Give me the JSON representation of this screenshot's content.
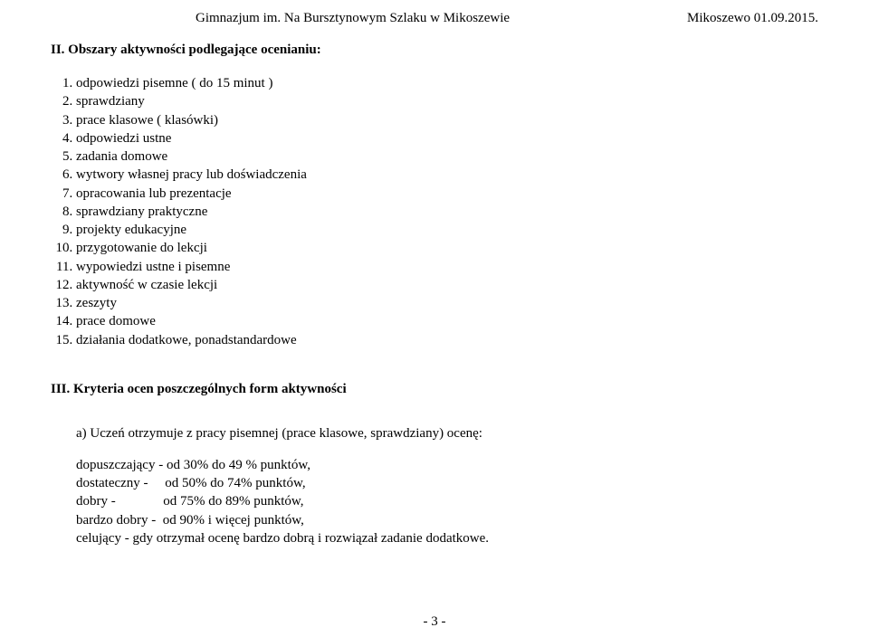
{
  "header": {
    "center": "Gimnazjum im. Na Bursztynowym Szlaku w Mikoszewie",
    "right": "Mikoszewo 01.09.2015."
  },
  "section2": {
    "heading": "II. Obszary aktywności podlegające ocenianiu:",
    "items": [
      "odpowiedzi pisemne ( do 15 minut )",
      "sprawdziany",
      "prace klasowe ( klasówki)",
      "odpowiedzi ustne",
      "zadania domowe",
      "wytwory własnej pracy lub doświadczenia",
      "opracowania lub prezentacje",
      "sprawdziany praktyczne",
      "projekty edukacyjne",
      "przygotowanie do lekcji",
      "wypowiedzi ustne i pisemne",
      "aktywność w czasie lekcji",
      "zeszyty",
      "prace domowe",
      "działania dodatkowe, ponadstandardowe"
    ]
  },
  "section3": {
    "heading": "III. Kryteria ocen poszczególnych form aktywności",
    "pointA": "a)  Uczeń otrzymuje z pracy pisemnej (prace klasowe, sprawdziany) ocenę:",
    "grades": [
      "dopuszczający - od 30% do 49 % punktów,",
      "dostateczny -     od 50% do 74% punktów,",
      "dobry -              od 75% do 89% punktów,",
      "bardzo dobry -  od 90% i więcej punktów,",
      "celujący - gdy otrzymał ocenę bardzo dobrą i rozwiązał zadanie dodatkowe."
    ]
  },
  "pageNumber": "- 3 -"
}
